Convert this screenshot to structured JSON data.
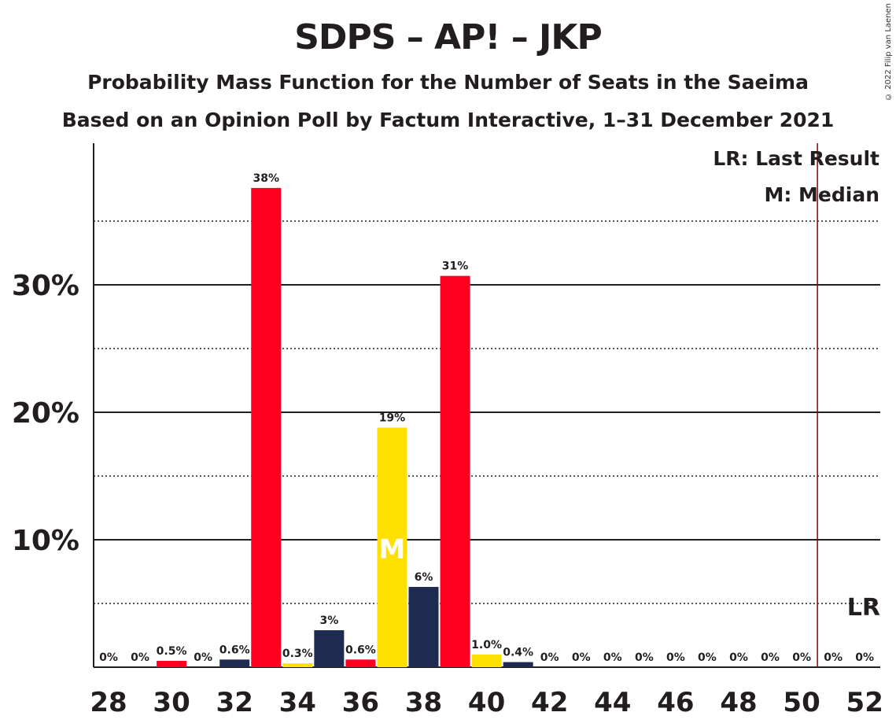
{
  "title": "SDPS – AP! – JKP",
  "subtitle1": "Probability Mass Function for the Number of Seats in the Saeima",
  "subtitle2": "Based on an Opinion Poll by Factum Interactive, 1–31 December 2021",
  "copyright": "© 2022 Filip van Laenen",
  "colors": {
    "red": "#ff0022",
    "navy": "#1f2a50",
    "yellow": "#ffe000",
    "lr_line": "#8b0000"
  },
  "chart_data": {
    "type": "bar",
    "xlabel": "",
    "ylabel": "",
    "ylim": [
      0,
      41
    ],
    "x_tick_labels": [
      "28",
      "30",
      "32",
      "34",
      "36",
      "38",
      "40",
      "42",
      "44",
      "46",
      "48",
      "50",
      "52"
    ],
    "y_tick_labels": [
      "10%",
      "20%",
      "30%"
    ],
    "y_ticks": [
      10,
      20,
      30
    ],
    "minor_gridlines": [
      5,
      15,
      25,
      35
    ],
    "legend": [
      "LR: Last Result",
      "M: Median"
    ],
    "legend_position": "top-right",
    "median_seat": 37,
    "median_marker": "M",
    "last_result_seat": 51,
    "last_result_marker": "LR",
    "bars": [
      {
        "seat": 28,
        "value": 0,
        "label": "0%",
        "color": "red"
      },
      {
        "seat": 29,
        "value": 0,
        "label": "0%",
        "color": "red"
      },
      {
        "seat": 30,
        "value": 0.5,
        "label": "0.5%",
        "color": "red"
      },
      {
        "seat": 31,
        "value": 0,
        "label": "0%",
        "color": "red"
      },
      {
        "seat": 32,
        "value": 0.6,
        "label": "0.6%",
        "color": "navy"
      },
      {
        "seat": 33,
        "value": 37.6,
        "label": "38%",
        "color": "red"
      },
      {
        "seat": 34,
        "value": 0.3,
        "label": "0.3%",
        "color": "yellow"
      },
      {
        "seat": 35,
        "value": 2.9,
        "label": "3%",
        "color": "navy"
      },
      {
        "seat": 36,
        "value": 0.6,
        "label": "0.6%",
        "color": "red"
      },
      {
        "seat": 37,
        "value": 18.8,
        "label": "19%",
        "color": "yellow"
      },
      {
        "seat": 38,
        "value": 6.3,
        "label": "6%",
        "color": "navy"
      },
      {
        "seat": 39,
        "value": 30.7,
        "label": "31%",
        "color": "red"
      },
      {
        "seat": 40,
        "value": 1.0,
        "label": "1.0%",
        "color": "yellow"
      },
      {
        "seat": 41,
        "value": 0.4,
        "label": "0.4%",
        "color": "navy"
      },
      {
        "seat": 42,
        "value": 0,
        "label": "0%",
        "color": "red"
      },
      {
        "seat": 43,
        "value": 0,
        "label": "0%",
        "color": "red"
      },
      {
        "seat": 44,
        "value": 0,
        "label": "0%",
        "color": "red"
      },
      {
        "seat": 45,
        "value": 0,
        "label": "0%",
        "color": "red"
      },
      {
        "seat": 46,
        "value": 0,
        "label": "0%",
        "color": "red"
      },
      {
        "seat": 47,
        "value": 0,
        "label": "0%",
        "color": "red"
      },
      {
        "seat": 48,
        "value": 0,
        "label": "0%",
        "color": "red"
      },
      {
        "seat": 49,
        "value": 0,
        "label": "0%",
        "color": "red"
      },
      {
        "seat": 50,
        "value": 0,
        "label": "0%",
        "color": "red"
      },
      {
        "seat": 51,
        "value": 0,
        "label": "0%",
        "color": "red"
      },
      {
        "seat": 52,
        "value": 0,
        "label": "0%",
        "color": "red"
      }
    ]
  }
}
